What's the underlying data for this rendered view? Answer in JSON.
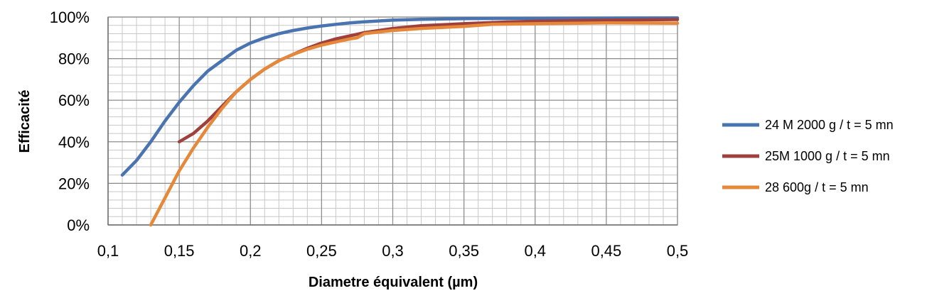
{
  "chart_data": {
    "type": "line",
    "title": "",
    "xlabel": "Diametre équivalent (µm)",
    "ylabel": "Efficacité",
    "xlim": [
      0.1,
      0.5
    ],
    "ylim": [
      0,
      1
    ],
    "x_major_step": 0.05,
    "x_minor_step": 0.01,
    "y_major_step": 0.2,
    "y_minor_step": 0.04,
    "x_ticks": [
      "0,1",
      "0,15",
      "0,2",
      "0,25",
      "0,3",
      "0,35",
      "0,4",
      "0,45",
      "0,5"
    ],
    "y_ticks": [
      "0%",
      "20%",
      "40%",
      "60%",
      "80%",
      "100%"
    ],
    "grid": true,
    "legend_position": "right",
    "series": [
      {
        "name": "24 M 2000 g / t = 5 mn",
        "color": "#4a74b0",
        "points": [
          [
            0.11,
            0.24
          ],
          [
            0.12,
            0.31
          ],
          [
            0.13,
            0.4
          ],
          [
            0.14,
            0.5
          ],
          [
            0.15,
            0.59
          ],
          [
            0.16,
            0.67
          ],
          [
            0.17,
            0.74
          ],
          [
            0.18,
            0.79
          ],
          [
            0.19,
            0.84
          ],
          [
            0.2,
            0.875
          ],
          [
            0.21,
            0.9
          ],
          [
            0.22,
            0.92
          ],
          [
            0.23,
            0.935
          ],
          [
            0.24,
            0.947
          ],
          [
            0.25,
            0.957
          ],
          [
            0.26,
            0.965
          ],
          [
            0.27,
            0.972
          ],
          [
            0.28,
            0.977
          ],
          [
            0.3,
            0.985
          ],
          [
            0.32,
            0.989
          ],
          [
            0.35,
            0.992
          ],
          [
            0.4,
            0.994
          ],
          [
            0.45,
            0.995
          ],
          [
            0.5,
            0.996
          ]
        ]
      },
      {
        "name": "25M 1000 g / t = 5 mn",
        "color": "#a0403c",
        "points": [
          [
            0.15,
            0.4
          ],
          [
            0.16,
            0.44
          ],
          [
            0.17,
            0.5
          ],
          [
            0.18,
            0.57
          ],
          [
            0.19,
            0.64
          ],
          [
            0.2,
            0.7
          ],
          [
            0.21,
            0.75
          ],
          [
            0.22,
            0.79
          ],
          [
            0.23,
            0.82
          ],
          [
            0.24,
            0.85
          ],
          [
            0.25,
            0.875
          ],
          [
            0.26,
            0.895
          ],
          [
            0.27,
            0.91
          ],
          [
            0.28,
            0.925
          ],
          [
            0.3,
            0.945
          ],
          [
            0.32,
            0.958
          ],
          [
            0.35,
            0.968
          ],
          [
            0.38,
            0.976
          ],
          [
            0.4,
            0.98
          ],
          [
            0.45,
            0.985
          ],
          [
            0.5,
            0.988
          ]
        ]
      },
      {
        "name": "28 600g  / t = 5 mn",
        "color": "#e5883a",
        "points": [
          [
            0.13,
            0.0
          ],
          [
            0.14,
            0.13
          ],
          [
            0.15,
            0.26
          ],
          [
            0.16,
            0.37
          ],
          [
            0.17,
            0.47
          ],
          [
            0.18,
            0.56
          ],
          [
            0.19,
            0.64
          ],
          [
            0.2,
            0.7
          ],
          [
            0.21,
            0.75
          ],
          [
            0.22,
            0.79
          ],
          [
            0.23,
            0.82
          ],
          [
            0.24,
            0.845
          ],
          [
            0.25,
            0.865
          ],
          [
            0.26,
            0.88
          ],
          [
            0.27,
            0.895
          ],
          [
            0.275,
            0.9
          ],
          [
            0.28,
            0.92
          ],
          [
            0.3,
            0.935
          ],
          [
            0.32,
            0.945
          ],
          [
            0.35,
            0.955
          ],
          [
            0.36,
            0.96
          ],
          [
            0.37,
            0.965
          ],
          [
            0.4,
            0.968
          ],
          [
            0.43,
            0.97
          ],
          [
            0.45,
            0.972
          ],
          [
            0.5,
            0.97
          ]
        ]
      }
    ]
  }
}
